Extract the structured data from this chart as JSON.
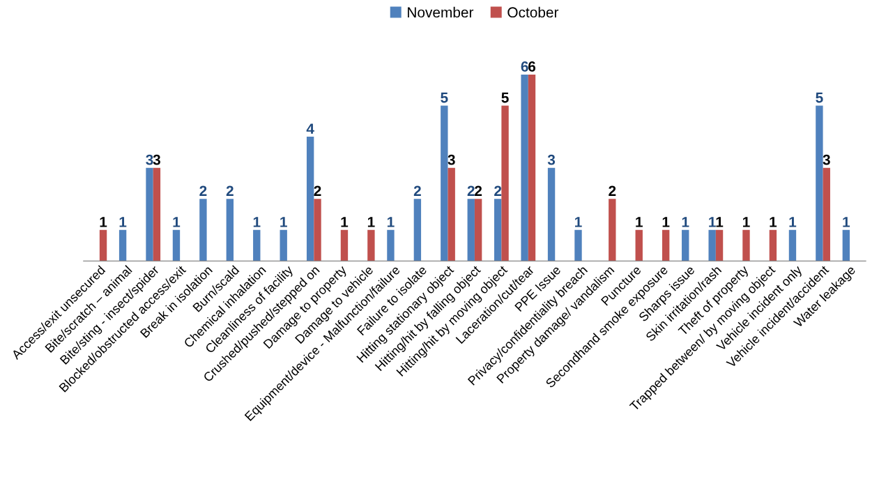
{
  "chart_data": {
    "type": "bar",
    "categories": [
      "Access/exit unsecured",
      "Bite/scratch – animal",
      "Bite/sting - insect/spider",
      "Blocked/obstructed access/exit",
      "Break in isolation",
      "Burn/scald",
      "Chemical inhalation",
      "Cleanliness of facility",
      "Crushed/pushed/stepped on",
      "Damage to property",
      "Damage to vehicle",
      "Equipment/device - Malfunction/failure",
      "Failure to isolate",
      "Hitting stationary object",
      "Hitting/hit by falling object",
      "Hitting/hit by moving object",
      "Laceration/cut/tear",
      "PPE Issue",
      "Privacy/confidentiality breach",
      "Property damage/ vandalism",
      "Puncture",
      "Secondhand smoke exposure",
      "Sharps issue",
      "Skin irritation/rash",
      "Theft of property",
      "Trapped between/ by moving object",
      "Vehicle incident only",
      "Vehicle incident/accident",
      "Water leakage"
    ],
    "series": [
      {
        "name": "November",
        "color": "#4f81bd",
        "values": [
          null,
          1,
          3,
          1,
          2,
          2,
          1,
          1,
          4,
          null,
          null,
          1,
          2,
          5,
          2,
          2,
          6,
          3,
          1,
          null,
          null,
          null,
          1,
          1,
          null,
          null,
          1,
          5,
          1
        ]
      },
      {
        "name": "October",
        "color": "#c0504d",
        "values": [
          1,
          null,
          3,
          null,
          null,
          null,
          null,
          null,
          2,
          1,
          1,
          null,
          null,
          3,
          2,
          5,
          6,
          null,
          null,
          2,
          1,
          1,
          null,
          1,
          1,
          1,
          null,
          3,
          null
        ]
      }
    ],
    "data_labels": true,
    "legend": "top",
    "grid": false
  }
}
